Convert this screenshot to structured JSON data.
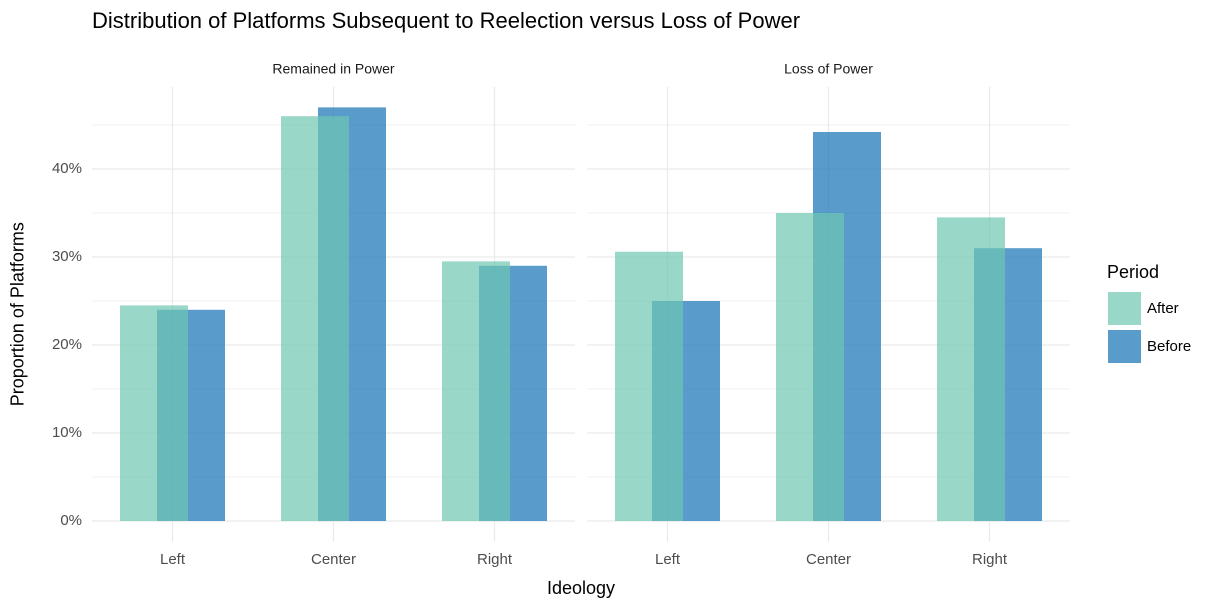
{
  "chart_data": {
    "type": "bar",
    "title": "Distribution of Platforms Subsequent to Reelection versus Loss of Power",
    "xlabel": "Ideology",
    "ylabel": "Proportion of Platforms",
    "legend_title": "Period",
    "legend": "right",
    "grid": true,
    "alpha": 0.7,
    "ylim": [
      -2.35,
      49.35
    ],
    "yticks": [
      {
        "value": 0,
        "label": "0%"
      },
      {
        "value": 10,
        "label": "10%"
      },
      {
        "value": 20,
        "label": "20%"
      },
      {
        "value": 30,
        "label": "30%"
      },
      {
        "value": 40,
        "label": "40%"
      }
    ],
    "facets": [
      {
        "title": "Remained in Power",
        "categories": [
          "Left",
          "Center",
          "Right"
        ],
        "series": [
          {
            "name": "After",
            "color": "#6dc7b0",
            "values": [
              24.5,
              46.0,
              29.5
            ]
          },
          {
            "name": "Before",
            "color": "#1370b5",
            "values": [
              24.0,
              47.0,
              29.0
            ]
          }
        ]
      },
      {
        "title": "Loss of Power",
        "categories": [
          "Left",
          "Center",
          "Right"
        ],
        "series": [
          {
            "name": "After",
            "color": "#6dc7b0",
            "values": [
              30.6,
              35.0,
              34.5
            ]
          },
          {
            "name": "Before",
            "color": "#1370b5",
            "values": [
              25.0,
              44.2,
              31.0
            ]
          }
        ]
      }
    ]
  }
}
